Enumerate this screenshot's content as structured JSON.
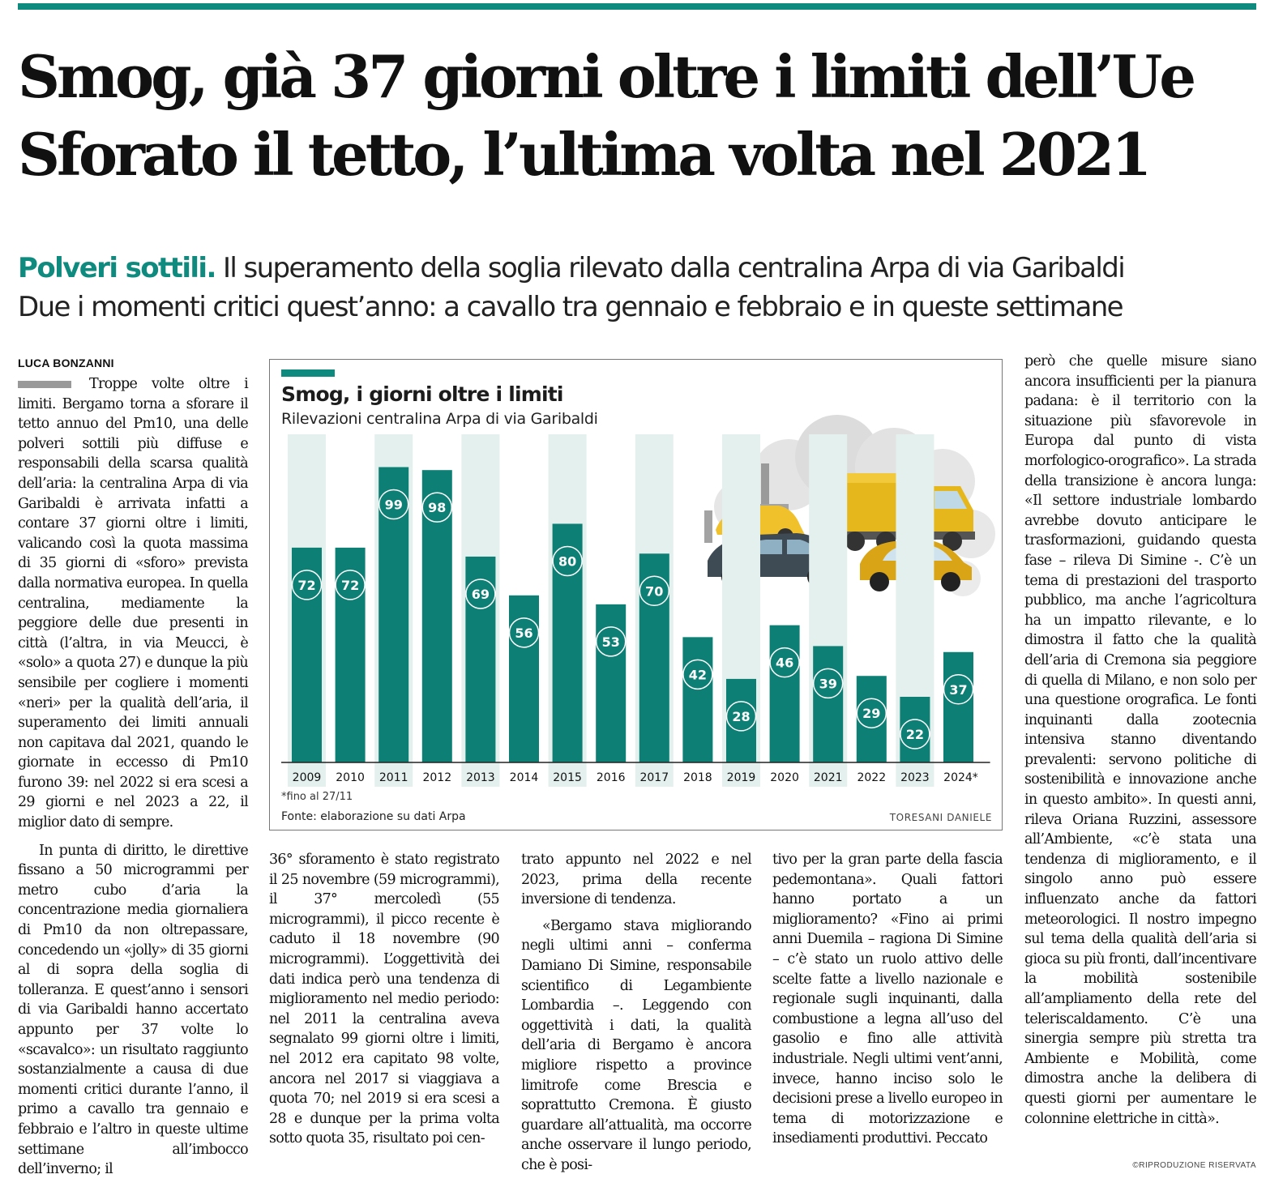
{
  "headline": {
    "line1": "Smog, già 37 giorni oltre i limiti dell’Ue",
    "line2": "Sforato il tetto, l’ultima volta nel 2021"
  },
  "subheadline": {
    "kicker": "Polveri sottili.",
    "line1_rest": " Il superamento della soglia rilevato dalla centralina Arpa di via Garibaldi",
    "line2": "Due i momenti critici quest’anno: a cavallo tra gennaio e febbraio e in queste settimane"
  },
  "byline": "LUCA BONZANNI",
  "columns": {
    "c1": [
      "Troppe volte oltre i limiti. Bergamo torna a sforare il tetto annuo del Pm10, una delle polveri sottili più diffuse e responsabili della scarsa qualità dell’aria: la centralina Arpa di via Garibaldi è arrivata infatti a contare 37 giorni oltre i limiti, valicando così la quota massima di 35 giorni di «sforo» prevista dalla normativa europea. In quella centralina, mediamente la peggiore delle due presenti in città (l’altra, in via Meucci, è «solo» a quota 27) e dunque la più sensibile per cogliere i momenti «neri» per la qualità dell’aria, il superamento dei limiti annuali non capitava dal 2021, quando le giornate in eccesso di Pm10 furono 39: nel 2022 si era scesi a 29 giorni e nel 2023 a 22, il miglior dato di sempre.",
      "In punta di diritto, le direttive fissano a 50 microgrammi per metro cubo d’aria la concentrazione media giornaliera di Pm10 da non oltrepassare, concedendo un «jolly» di 35 giorni al di sopra della soglia di tolleranza. E quest’anno i sensori di via Garibaldi hanno accertato appunto per 37 volte lo «scavalco»: un risultato raggiunto sostanzialmente a causa di due momenti critici durante l’anno, il primo a cavallo tra gennaio e febbraio e l’altro in queste ultime settimane all’imbocco dell’inverno; il"
    ],
    "c2": [
      "36° sforamento è stato registrato il 25 novembre (59 microgrammi), il 37° mercoledì (55 microgrammi), il picco recente è caduto il 18 novembre (90 microgrammi). L’oggettività dei dati indica però una tendenza di miglioramento nel medio periodo: nel 2011 la centralina aveva segnalato 99 giorni oltre i limiti, nel 2012 era capitato 98 volte, ancora nel 2017 si viaggiava a quota 70; nel 2019 si era scesi a 28 e dunque per la prima volta sotto quota 35, risultato poi cen-"
    ],
    "c3": [
      "trato appunto nel 2022 e nel 2023, prima della recente inversione di tendenza.",
      "«Bergamo stava migliorando negli ultimi anni – conferma Damiano Di Simine, responsabile scientifico di Legambiente Lombardia –. Leggendo con oggettività i dati, la qualità dell’aria di Bergamo è ancora migliore rispetto a province limitrofe come Brescia e soprattutto Cremona. È giusto guardare all’attualità, ma occorre anche osservare il lungo periodo, che è posi-"
    ],
    "c4": [
      "tivo per la gran parte della fascia pedemontana». Quali fattori hanno portato a un miglioramento? «Fino ai primi anni Duemila – ragiona Di Simine – c’è stato un ruolo attivo delle scelte fatte a livello nazionale e regionale sugli inquinanti, dalla combustione a legna all’uso del gasolio e fino alle attività industriale. Negli ultimi vent’anni, invece, hanno inciso solo le decisioni prese a livello europeo in tema di motorizzazione e insediamenti produttivi. Peccato"
    ],
    "c5": [
      "però che quelle misure siano ancora insufficienti per la pianura padana: è il territorio con la situazione più sfavorevole in Europa dal punto di vista morfologico-orografico». La strada della transizione è ancora lunga: «Il settore industriale lombardo avrebbe dovuto anticipare le trasformazioni, guidando questa fase – rileva Di Simine -. C’è un tema di prestazioni del trasporto pubblico, ma anche l’agricoltura ha un impatto rilevante, e lo dimostra il fatto che la qualità dell’aria di Cremona sia peggiore di quella di Milano, e non solo per una questione orografica. Le fonti inquinanti dalla zootecnia intensiva stanno diventando prevalenti: servono politiche di sostenibilità e innovazione anche in questo ambito». In questi anni, rileva Oriana Ruzzini, assessore all’Ambiente, «c’è stata una tendenza di miglioramento, e il singolo anno può essere influenzato anche da fattori meteorologici. Il nostro impegno sul tema della qualità dell’aria si gioca su più fronti, dall’incentivare la mobilità sostenibile all’ampliamento della rete del teleriscaldamento. C’è una sinergia sempre più stretta tra Ambiente e Mobilità, come dimostra anche la delibera di questi giorni per aumentare le colonnine elettriche in città»."
    ]
  },
  "copyright": "©RIPRODUZIONE RISERVATA",
  "chart_data": {
    "type": "bar",
    "title": "Smog, i giorni oltre i limiti",
    "subtitle": "Rilevazioni centralina Arpa di via Garibaldi",
    "categories": [
      "2009",
      "2010",
      "2011",
      "2012",
      "2013",
      "2014",
      "2015",
      "2016",
      "2017",
      "2018",
      "2019",
      "2020",
      "2021",
      "2022",
      "2023",
      "2024*"
    ],
    "values": [
      72,
      72,
      99,
      98,
      69,
      56,
      80,
      53,
      70,
      42,
      28,
      46,
      39,
      29,
      22,
      37
    ],
    "ylim": [
      0,
      110
    ],
    "grid": false,
    "note": "*fino al 27/11",
    "source": "Fonte: elaborazione su dati Arpa",
    "credit": "TORESANI DANIELE",
    "bar_color": "#0e7f74",
    "band_color": "#e3f0ee"
  }
}
